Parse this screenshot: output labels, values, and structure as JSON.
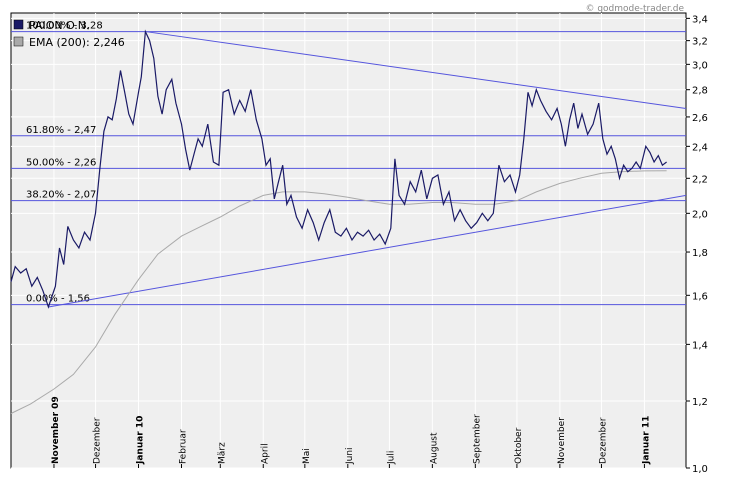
{
  "source_credit": "© godmode-trader.de",
  "chart_data": {
    "type": "line",
    "y_scale": "log",
    "ylim": [
      1.0,
      3.45
    ],
    "y_ticks": [
      "1,0",
      "1,2",
      "1,4",
      "1,6",
      "1,8",
      "2,0",
      "2,2",
      "2,4",
      "2,6",
      "2,8",
      "3,0",
      "3,2",
      "3,4"
    ],
    "y_tick_values": [
      1.0,
      1.2,
      1.4,
      1.6,
      1.8,
      2.0,
      2.2,
      2.4,
      2.6,
      2.8,
      3.0,
      3.2,
      3.4
    ],
    "x_range": [
      "2009-10-01",
      "2011-01-31"
    ],
    "x_ticks": [
      {
        "label": "November 09",
        "date": "2009-11-01",
        "bold": true
      },
      {
        "label": "Dezember",
        "date": "2009-12-01",
        "bold": false
      },
      {
        "label": "Januar 10",
        "date": "2010-01-01",
        "bold": true
      },
      {
        "label": "Februar",
        "date": "2010-02-01",
        "bold": false
      },
      {
        "label": "März",
        "date": "2010-03-01",
        "bold": false
      },
      {
        "label": "April",
        "date": "2010-04-01",
        "bold": false
      },
      {
        "label": "Mai",
        "date": "2010-05-01",
        "bold": false
      },
      {
        "label": "Juni",
        "date": "2010-06-01",
        "bold": false
      },
      {
        "label": "Juli",
        "date": "2010-07-01",
        "bold": false
      },
      {
        "label": "August",
        "date": "2010-08-01",
        "bold": false
      },
      {
        "label": "September",
        "date": "2010-09-01",
        "bold": false
      },
      {
        "label": "Oktober",
        "date": "2010-10-01",
        "bold": false
      },
      {
        "label": "November",
        "date": "2010-11-01",
        "bold": false
      },
      {
        "label": "Dezember",
        "date": "2010-12-01",
        "bold": false
      },
      {
        "label": "Januar 11",
        "date": "2011-01-01",
        "bold": true
      }
    ],
    "legend": [
      {
        "label": "PAION O.N.",
        "color": "#1a1a66"
      },
      {
        "label": "EMA (200): 2,246",
        "color": "#aaaaaa"
      }
    ],
    "fib_levels": [
      {
        "label": "100.00% - 3,28",
        "value": 3.28
      },
      {
        "label": "61.80% - 2,47",
        "value": 2.47
      },
      {
        "label": "50.00% - 2,26",
        "value": 2.26
      },
      {
        "label": "38.20% - 2,07",
        "value": 2.07
      },
      {
        "label": "0.00% - 1,56",
        "value": 1.56
      }
    ],
    "trendlines": [
      {
        "name": "upper",
        "from": [
          "2010-01-06",
          3.28
        ],
        "to": [
          "2011-01-31",
          2.66
        ]
      },
      {
        "name": "lower",
        "from": [
          "2009-10-28",
          1.55
        ],
        "to": [
          "2011-01-31",
          2.1
        ]
      }
    ],
    "series": [
      {
        "name": "PAION O.N.",
        "color": "#1a1a66",
        "points": [
          [
            "2009-10-01",
            1.66
          ],
          [
            "2009-10-04",
            1.73
          ],
          [
            "2009-10-08",
            1.7
          ],
          [
            "2009-10-12",
            1.72
          ],
          [
            "2009-10-16",
            1.64
          ],
          [
            "2009-10-20",
            1.68
          ],
          [
            "2009-10-24",
            1.62
          ],
          [
            "2009-10-28",
            1.55
          ],
          [
            "2009-11-02",
            1.64
          ],
          [
            "2009-11-05",
            1.82
          ],
          [
            "2009-11-08",
            1.74
          ],
          [
            "2009-11-11",
            1.93
          ],
          [
            "2009-11-15",
            1.86
          ],
          [
            "2009-11-19",
            1.82
          ],
          [
            "2009-11-23",
            1.9
          ],
          [
            "2009-11-27",
            1.86
          ],
          [
            "2009-12-01",
            2.0
          ],
          [
            "2009-12-04",
            2.25
          ],
          [
            "2009-12-07",
            2.5
          ],
          [
            "2009-12-10",
            2.6
          ],
          [
            "2009-12-13",
            2.58
          ],
          [
            "2009-12-16",
            2.73
          ],
          [
            "2009-12-19",
            2.95
          ],
          [
            "2009-12-22",
            2.78
          ],
          [
            "2009-12-25",
            2.62
          ],
          [
            "2009-12-28",
            2.55
          ],
          [
            "2010-01-01",
            2.78
          ],
          [
            "2010-01-03",
            2.9
          ],
          [
            "2010-01-06",
            3.28
          ],
          [
            "2010-01-09",
            3.2
          ],
          [
            "2010-01-12",
            3.05
          ],
          [
            "2010-01-15",
            2.75
          ],
          [
            "2010-01-18",
            2.62
          ],
          [
            "2010-01-21",
            2.8
          ],
          [
            "2010-01-25",
            2.88
          ],
          [
            "2010-01-28",
            2.7
          ],
          [
            "2010-02-01",
            2.55
          ],
          [
            "2010-02-04",
            2.38
          ],
          [
            "2010-02-07",
            2.25
          ],
          [
            "2010-02-10",
            2.35
          ],
          [
            "2010-02-13",
            2.45
          ],
          [
            "2010-02-16",
            2.4
          ],
          [
            "2010-02-20",
            2.55
          ],
          [
            "2010-02-24",
            2.3
          ],
          [
            "2010-02-28",
            2.28
          ],
          [
            "2010-03-03",
            2.78
          ],
          [
            "2010-03-07",
            2.8
          ],
          [
            "2010-03-11",
            2.62
          ],
          [
            "2010-03-15",
            2.72
          ],
          [
            "2010-03-19",
            2.64
          ],
          [
            "2010-03-23",
            2.8
          ],
          [
            "2010-03-27",
            2.58
          ],
          [
            "2010-03-31",
            2.45
          ],
          [
            "2010-04-03",
            2.28
          ],
          [
            "2010-04-06",
            2.32
          ],
          [
            "2010-04-09",
            2.08
          ],
          [
            "2010-04-12",
            2.18
          ],
          [
            "2010-04-15",
            2.28
          ],
          [
            "2010-04-18",
            2.05
          ],
          [
            "2010-04-21",
            2.1
          ],
          [
            "2010-04-25",
            1.98
          ],
          [
            "2010-04-29",
            1.92
          ],
          [
            "2010-05-03",
            2.02
          ],
          [
            "2010-05-07",
            1.95
          ],
          [
            "2010-05-11",
            1.86
          ],
          [
            "2010-05-15",
            1.95
          ],
          [
            "2010-05-19",
            2.02
          ],
          [
            "2010-05-23",
            1.9
          ],
          [
            "2010-05-27",
            1.88
          ],
          [
            "2010-05-31",
            1.92
          ],
          [
            "2010-06-04",
            1.86
          ],
          [
            "2010-06-08",
            1.9
          ],
          [
            "2010-06-12",
            1.88
          ],
          [
            "2010-06-16",
            1.91
          ],
          [
            "2010-06-20",
            1.86
          ],
          [
            "2010-06-24",
            1.89
          ],
          [
            "2010-06-28",
            1.84
          ],
          [
            "2010-07-02",
            1.92
          ],
          [
            "2010-07-05",
            2.32
          ],
          [
            "2010-07-08",
            2.1
          ],
          [
            "2010-07-12",
            2.05
          ],
          [
            "2010-07-16",
            2.18
          ],
          [
            "2010-07-20",
            2.12
          ],
          [
            "2010-07-24",
            2.25
          ],
          [
            "2010-07-28",
            2.08
          ],
          [
            "2010-08-01",
            2.2
          ],
          [
            "2010-08-05",
            2.22
          ],
          [
            "2010-08-09",
            2.05
          ],
          [
            "2010-08-13",
            2.12
          ],
          [
            "2010-08-17",
            1.96
          ],
          [
            "2010-08-21",
            2.02
          ],
          [
            "2010-08-25",
            1.96
          ],
          [
            "2010-08-29",
            1.92
          ],
          [
            "2010-09-02",
            1.95
          ],
          [
            "2010-09-06",
            2.0
          ],
          [
            "2010-09-10",
            1.96
          ],
          [
            "2010-09-14",
            2.0
          ],
          [
            "2010-09-18",
            2.28
          ],
          [
            "2010-09-22",
            2.18
          ],
          [
            "2010-09-26",
            2.22
          ],
          [
            "2010-09-30",
            2.12
          ],
          [
            "2010-10-03",
            2.22
          ],
          [
            "2010-10-06",
            2.45
          ],
          [
            "2010-10-09",
            2.78
          ],
          [
            "2010-10-12",
            2.68
          ],
          [
            "2010-10-15",
            2.8
          ],
          [
            "2010-10-18",
            2.72
          ],
          [
            "2010-10-22",
            2.64
          ],
          [
            "2010-10-26",
            2.58
          ],
          [
            "2010-10-30",
            2.66
          ],
          [
            "2010-11-02",
            2.55
          ],
          [
            "2010-11-05",
            2.4
          ],
          [
            "2010-11-08",
            2.58
          ],
          [
            "2010-11-11",
            2.7
          ],
          [
            "2010-11-14",
            2.52
          ],
          [
            "2010-11-17",
            2.62
          ],
          [
            "2010-11-21",
            2.48
          ],
          [
            "2010-11-25",
            2.55
          ],
          [
            "2010-11-29",
            2.7
          ],
          [
            "2010-12-02",
            2.45
          ],
          [
            "2010-12-05",
            2.35
          ],
          [
            "2010-12-08",
            2.4
          ],
          [
            "2010-12-11",
            2.32
          ],
          [
            "2010-12-14",
            2.2
          ],
          [
            "2010-12-17",
            2.28
          ],
          [
            "2010-12-20",
            2.24
          ],
          [
            "2010-12-23",
            2.26
          ],
          [
            "2010-12-26",
            2.3
          ],
          [
            "2010-12-29",
            2.26
          ],
          [
            "2011-01-02",
            2.4
          ],
          [
            "2011-01-05",
            2.36
          ],
          [
            "2011-01-08",
            2.3
          ],
          [
            "2011-01-11",
            2.34
          ],
          [
            "2011-01-14",
            2.28
          ],
          [
            "2011-01-17",
            2.3
          ]
        ]
      },
      {
        "name": "EMA (200)",
        "color": "#aaaaaa",
        "points": [
          [
            "2009-10-01",
            1.16
          ],
          [
            "2009-10-15",
            1.19
          ],
          [
            "2009-11-01",
            1.24
          ],
          [
            "2009-11-15",
            1.29
          ],
          [
            "2009-12-01",
            1.39
          ],
          [
            "2009-12-15",
            1.52
          ],
          [
            "2010-01-01",
            1.67
          ],
          [
            "2010-01-15",
            1.79
          ],
          [
            "2010-02-01",
            1.88
          ],
          [
            "2010-02-15",
            1.93
          ],
          [
            "2010-03-01",
            1.98
          ],
          [
            "2010-03-15",
            2.04
          ],
          [
            "2010-04-01",
            2.1
          ],
          [
            "2010-04-15",
            2.12
          ],
          [
            "2010-05-01",
            2.12
          ],
          [
            "2010-05-15",
            2.11
          ],
          [
            "2010-06-01",
            2.09
          ],
          [
            "2010-06-15",
            2.07
          ],
          [
            "2010-07-01",
            2.05
          ],
          [
            "2010-07-15",
            2.05
          ],
          [
            "2010-08-01",
            2.06
          ],
          [
            "2010-08-15",
            2.06
          ],
          [
            "2010-09-01",
            2.05
          ],
          [
            "2010-09-15",
            2.05
          ],
          [
            "2010-10-01",
            2.07
          ],
          [
            "2010-10-15",
            2.12
          ],
          [
            "2010-11-01",
            2.17
          ],
          [
            "2010-11-15",
            2.2
          ],
          [
            "2010-12-01",
            2.23
          ],
          [
            "2010-12-15",
            2.24
          ],
          [
            "2011-01-01",
            2.245
          ],
          [
            "2011-01-17",
            2.246
          ]
        ]
      }
    ]
  }
}
